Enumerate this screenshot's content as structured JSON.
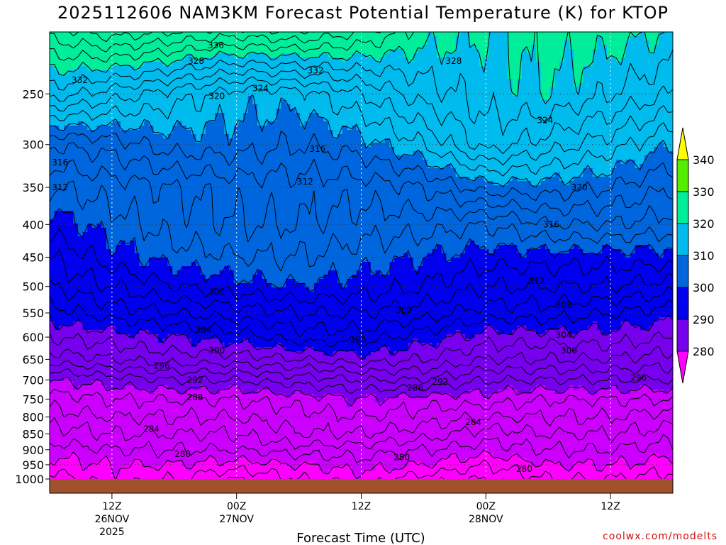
{
  "title": "2025112606 NAM3KM Forecast Potential Temperature (K) for KTOP",
  "credit": "coolwx.com/modelts",
  "colors": {
    "ground": "#a0522d",
    "bands": {
      "270": "#ff00ff",
      "280": "#cc00ff",
      "290": "#7700ee",
      "300": "#0000ee",
      "310": "#0066dd",
      "320": "#00bbee",
      "330": "#00ee99",
      "340": "#55ee00"
    }
  },
  "chart_data": {
    "type": "heatmap",
    "title": "2025112606 NAM3KM Forecast Potential Temperature (K) for KTOP",
    "xlabel": "Forecast Time (UTC)",
    "ylabel": "",
    "y_scale": "log-pressure",
    "ylim": [
      1000,
      200
    ],
    "xlim_hours": [
      0,
      60
    ],
    "y_ticks": [
      250,
      300,
      350,
      400,
      450,
      500,
      550,
      600,
      650,
      700,
      750,
      800,
      850,
      900,
      950,
      1000
    ],
    "x_ticks": [
      {
        "hour": 6,
        "line1": "12Z",
        "line2": "26NOV",
        "line3": "2025"
      },
      {
        "hour": 18,
        "line1": "00Z",
        "line2": "27NOV",
        "line3": ""
      },
      {
        "hour": 30,
        "line1": "12Z",
        "line2": "",
        "line3": ""
      },
      {
        "hour": 42,
        "line1": "00Z",
        "line2": "28NOV",
        "line3": ""
      },
      {
        "hour": 54,
        "line1": "12Z",
        "line2": "",
        "line3": ""
      }
    ],
    "colorbar": {
      "levels": [
        280,
        290,
        300,
        310,
        320,
        330,
        340
      ],
      "colors": [
        "#ff00ff",
        "#cc00ff",
        "#7700ee",
        "#0000ee",
        "#0066dd",
        "#00bbee",
        "#00ee99",
        "#55ee00",
        "#ffff00"
      ],
      "labels": [
        "280",
        "290",
        "300",
        "310",
        "320",
        "330",
        "340"
      ]
    },
    "contour_interval_K": 2,
    "surface_pressure_hPa": 1000,
    "control_hours": [
      0,
      6,
      12,
      18,
      24,
      30,
      36,
      42,
      48,
      54,
      60
    ],
    "control_pressures_hPa": [
      1000,
      950,
      900,
      850,
      800,
      750,
      700,
      650,
      600,
      550,
      500,
      450,
      400,
      350,
      300,
      250,
      200
    ],
    "theta_K": [
      [
        277,
        279,
        278,
        276,
        278,
        279,
        277,
        276,
        278,
        278,
        277
      ],
      [
        279,
        280,
        280,
        279,
        280,
        281,
        280,
        278,
        280,
        280,
        279
      ],
      [
        281,
        282,
        282,
        282,
        283,
        283,
        282,
        281,
        282,
        282,
        281
      ],
      [
        283,
        284,
        284,
        284,
        286,
        286,
        285,
        283,
        284,
        284,
        283
      ],
      [
        285,
        286,
        286,
        286,
        287,
        288,
        287,
        286,
        286,
        286,
        285
      ],
      [
        287,
        288,
        288,
        288,
        289,
        290,
        289,
        289,
        288,
        288,
        288
      ],
      [
        290,
        291,
        292,
        292,
        293,
        294,
        294,
        292,
        292,
        292,
        292
      ],
      [
        295,
        296,
        297,
        297,
        298,
        299,
        298,
        296,
        296,
        296,
        295
      ],
      [
        298,
        299,
        300,
        301,
        303,
        303,
        301,
        299,
        299,
        299,
        298
      ],
      [
        301,
        303,
        304,
        305,
        306,
        306,
        305,
        303,
        303,
        302,
        301
      ],
      [
        304,
        306,
        308,
        309,
        310,
        309,
        308,
        306,
        306,
        306,
        305
      ],
      [
        306,
        309,
        311,
        312,
        312,
        311,
        310,
        309,
        309,
        309,
        309
      ],
      [
        309,
        311,
        313,
        314,
        314,
        313,
        313,
        312,
        314,
        314,
        313
      ],
      [
        312,
        313,
        314,
        315,
        315,
        315,
        316,
        319,
        319,
        318,
        316
      ],
      [
        316,
        317,
        319,
        319,
        318,
        319,
        322,
        327,
        325,
        323,
        320
      ],
      [
        327,
        325,
        323,
        321,
        321,
        324,
        327,
        329,
        330,
        328,
        326
      ],
      [
        335,
        337,
        336,
        335,
        336,
        334,
        331,
        330,
        331,
        331,
        330
      ]
    ],
    "contour_labels": [
      {
        "text": "336",
        "hour": 16.0,
        "p": 210
      },
      {
        "text": "328",
        "hour": 14.1,
        "p": 222
      },
      {
        "text": "332",
        "hour": 2.9,
        "p": 238
      },
      {
        "text": "332",
        "hour": 25.6,
        "p": 230
      },
      {
        "text": "328",
        "hour": 38.9,
        "p": 222
      },
      {
        "text": "320",
        "hour": 16.1,
        "p": 252
      },
      {
        "text": "324",
        "hour": 20.3,
        "p": 245
      },
      {
        "text": "324",
        "hour": 47.7,
        "p": 275
      },
      {
        "text": "316",
        "hour": 1.0,
        "p": 320
      },
      {
        "text": "316",
        "hour": 25.8,
        "p": 305
      },
      {
        "text": "312",
        "hour": 1.0,
        "p": 350
      },
      {
        "text": "312",
        "hour": 24.6,
        "p": 343
      },
      {
        "text": "320",
        "hour": 51.0,
        "p": 350
      },
      {
        "text": "316",
        "hour": 48.3,
        "p": 400
      },
      {
        "text": "312",
        "hour": 46.9,
        "p": 490
      },
      {
        "text": "308",
        "hour": 16.1,
        "p": 510
      },
      {
        "text": "308",
        "hour": 49.5,
        "p": 535
      },
      {
        "text": "300",
        "hour": 34.1,
        "p": 545
      },
      {
        "text": "304",
        "hour": 14.8,
        "p": 585
      },
      {
        "text": "304",
        "hour": 49.5,
        "p": 595
      },
      {
        "text": "296",
        "hour": 29.7,
        "p": 605
      },
      {
        "text": "300",
        "hour": 16.1,
        "p": 630
      },
      {
        "text": "300",
        "hour": 50.0,
        "p": 630
      },
      {
        "text": "296",
        "hour": 10.8,
        "p": 665
      },
      {
        "text": "296",
        "hour": 56.7,
        "p": 695
      },
      {
        "text": "292",
        "hour": 14.0,
        "p": 700
      },
      {
        "text": "292",
        "hour": 37.6,
        "p": 705
      },
      {
        "text": "288",
        "hour": 14.0,
        "p": 745
      },
      {
        "text": "288",
        "hour": 35.2,
        "p": 720
      },
      {
        "text": "284",
        "hour": 9.8,
        "p": 835
      },
      {
        "text": "284",
        "hour": 40.8,
        "p": 815
      },
      {
        "text": "280",
        "hour": 12.8,
        "p": 915
      },
      {
        "text": "280",
        "hour": 33.9,
        "p": 925
      },
      {
        "text": "280",
        "hour": 45.7,
        "p": 965
      }
    ]
  }
}
